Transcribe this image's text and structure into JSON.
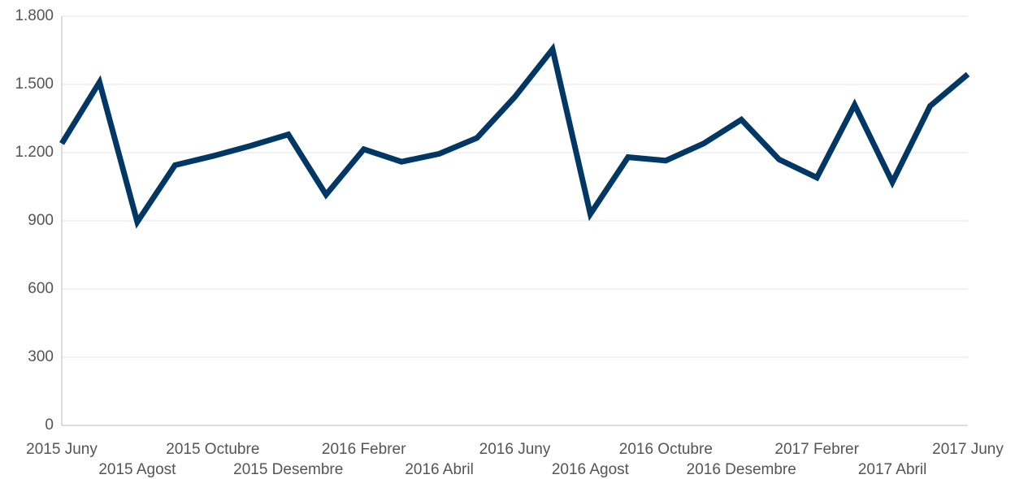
{
  "chart_data": {
    "type": "line",
    "categories": [
      "2015 Juny",
      null,
      "2015 Agost",
      null,
      "2015 Octubre",
      null,
      "2015 Desembre",
      null,
      "2016 Febrer",
      null,
      "2016 Abril",
      null,
      "2016 Juny",
      null,
      "2016 Agost",
      null,
      "2016 Octubre",
      null,
      "2016 Desembre",
      null,
      "2017 Febrer",
      null,
      "2017 Abril",
      null,
      "2017 Juny"
    ],
    "values": [
      1240,
      1510,
      895,
      1145,
      1185,
      1230,
      1280,
      1015,
      1215,
      1160,
      1195,
      1265,
      1445,
      1655,
      930,
      1180,
      1165,
      1240,
      1345,
      1170,
      1090,
      1410,
      1070,
      1405,
      1545
    ],
    "color": "#003764",
    "ylim": [
      0,
      1800
    ],
    "yticks": [
      0,
      300,
      600,
      900,
      {
        "value": 1200,
        "label": "1.200"
      },
      {
        "value": 1500,
        "label": "1.500"
      },
      {
        "value": 1800,
        "label": "1.800"
      }
    ],
    "grid": true
  }
}
